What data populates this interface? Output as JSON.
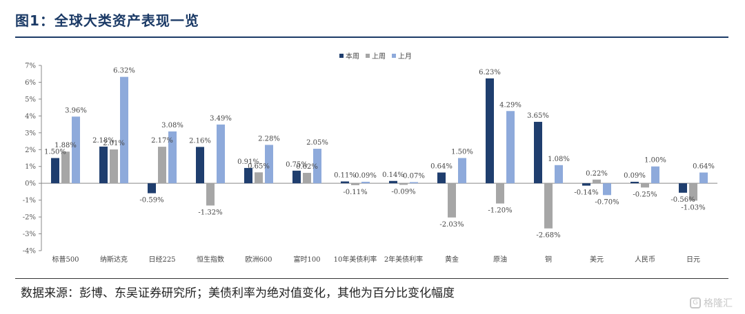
{
  "title": "图1：全球大类资产表现一览",
  "source": "数据来源：彭博、东吴证券研究所；美债利率为绝对值变化，其他为百分比变化幅度",
  "watermark": "格隆汇",
  "colors": {
    "s1": "#1f3e6e",
    "s2": "#a6a6a6",
    "s3": "#8eaadb",
    "title": "#1b3a66"
  },
  "chart_data": {
    "type": "bar",
    "title": "",
    "xlabel": "",
    "ylabel": "",
    "ylim": [
      -4,
      7
    ],
    "yticks": [
      "-4%",
      "-3%",
      "-2%",
      "-1%",
      "0%",
      "1%",
      "2%",
      "3%",
      "4%",
      "5%",
      "6%",
      "7%"
    ],
    "legend_position": "top-center",
    "grid": false,
    "categories": [
      "标普500",
      "纳斯达克",
      "日经225",
      "恒生指数",
      "欧洲600",
      "富时100",
      "10年美债利率",
      "2年美债利率",
      "黄金",
      "原油",
      "铜",
      "美元",
      "人民币",
      "日元"
    ],
    "series": [
      {
        "name": "本周",
        "color": "#1f3e6e",
        "values": [
          1.5,
          2.18,
          -0.59,
          2.16,
          0.91,
          0.75,
          0.11,
          0.14,
          0.64,
          6.23,
          3.65,
          -0.14,
          0.09,
          -0.56
        ],
        "labels": [
          "1.50%",
          "2.18%",
          "-0.59%",
          "2.16%",
          "0.91%",
          "0.75%",
          "0.11%",
          "0.14%",
          "0.64%",
          "6.23%",
          "3.65%",
          "-0.14%",
          "0.09%",
          "-0.56%"
        ]
      },
      {
        "name": "上周",
        "color": "#a6a6a6",
        "values": [
          1.88,
          2.01,
          2.17,
          -1.32,
          0.65,
          0.62,
          -0.11,
          -0.09,
          -2.03,
          -1.2,
          -2.68,
          0.22,
          -0.25,
          -1.03
        ],
        "labels": [
          "1.88%",
          "2.01%",
          "2.17%",
          "-1.32%",
          "0.65%",
          "0.62%",
          "-0.11%",
          "-0.09%",
          "-2.03%",
          "-1.20%",
          "-2.68%",
          "0.22%",
          "-0.25%",
          "-1.03%"
        ]
      },
      {
        "name": "上月",
        "color": "#8eaadb",
        "values": [
          3.96,
          6.32,
          3.08,
          3.49,
          2.28,
          2.05,
          0.09,
          0.07,
          1.5,
          4.29,
          1.08,
          -0.7,
          1.0,
          0.64
        ],
        "labels": [
          "3.96%",
          "6.32%",
          "3.08%",
          "3.49%",
          "2.28%",
          "2.05%",
          "0.09%",
          "0.07%",
          "1.50%",
          "4.29%",
          "1.08%",
          "-0.70%",
          "1.00%",
          "0.64%"
        ]
      }
    ]
  }
}
